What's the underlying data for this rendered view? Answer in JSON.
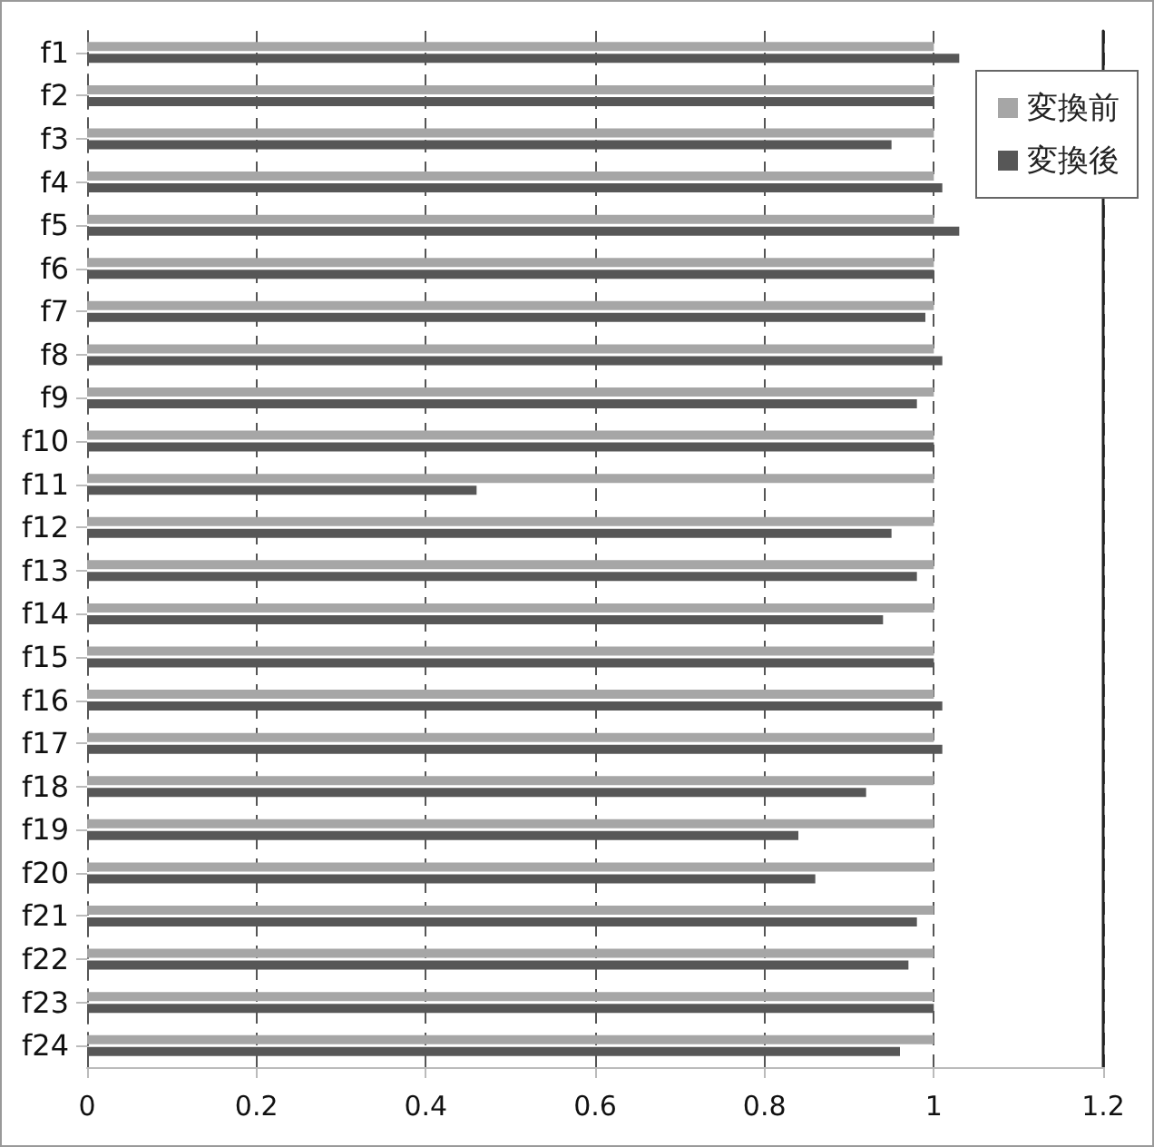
{
  "chart_data": {
    "type": "bar",
    "orientation": "horizontal",
    "categories": [
      "f1",
      "f2",
      "f3",
      "f4",
      "f5",
      "f6",
      "f7",
      "f8",
      "f9",
      "f10",
      "f11",
      "f12",
      "f13",
      "f14",
      "f15",
      "f16",
      "f17",
      "f18",
      "f19",
      "f20",
      "f21",
      "f22",
      "f23",
      "f24"
    ],
    "series": [
      {
        "name": "変換前",
        "color": "#a6a6a6",
        "values": [
          1,
          1,
          1,
          1,
          1,
          1,
          1,
          1,
          1,
          1,
          1,
          1,
          1,
          1,
          1,
          1,
          1,
          1,
          1,
          1,
          1,
          1,
          1,
          1
        ]
      },
      {
        "name": "変換後",
        "color": "#575757",
        "values": [
          1.03,
          1.0,
          0.95,
          1.01,
          1.03,
          1.0,
          0.99,
          1.01,
          0.98,
          1.0,
          0.46,
          0.95,
          0.98,
          0.94,
          1.0,
          1.01,
          1.01,
          0.92,
          0.84,
          0.86,
          0.98,
          0.97,
          1.0,
          0.96
        ]
      }
    ],
    "xlim": [
      0,
      1.2
    ],
    "xticks": [
      0,
      0.2,
      0.4,
      0.6,
      0.8,
      1,
      1.2
    ],
    "grid": "x",
    "legend": "top right"
  }
}
